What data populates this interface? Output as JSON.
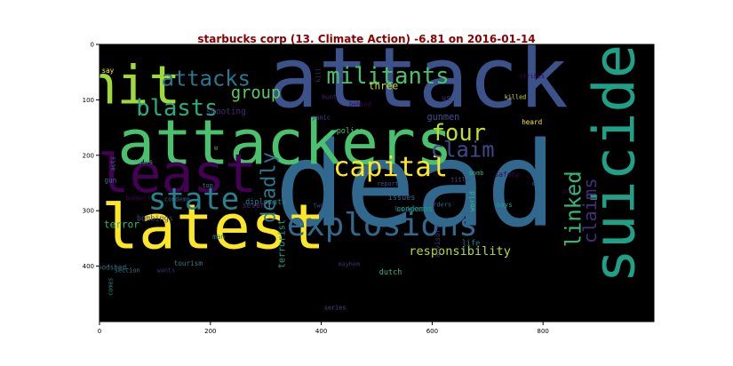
{
  "chart_data": {
    "type": "wordcloud",
    "title": "starbucks corp (13. Climate Action) -6.81 on 2016-01-14",
    "xlim": [
      0,
      1000
    ],
    "ylim": [
      500,
      0
    ],
    "x_ticks": [
      0,
      200,
      400,
      600,
      800
    ],
    "y_ticks": [
      0,
      100,
      200,
      300,
      400
    ],
    "background": "#000000",
    "title_color": "#8b0000",
    "words": [
      {
        "text": "attack",
        "x": 575,
        "y": 62,
        "size": 110,
        "color": "#3b528b",
        "rotate": 0
      },
      {
        "text": "dead",
        "x": 570,
        "y": 255,
        "size": 155,
        "color": "#31688e",
        "rotate": 0
      },
      {
        "text": "attackers",
        "x": 335,
        "y": 178,
        "size": 82,
        "color": "#4ac16d",
        "rotate": 0
      },
      {
        "text": "latest",
        "x": 205,
        "y": 330,
        "size": 82,
        "color": "#fde725",
        "rotate": 0
      },
      {
        "text": "hit",
        "x": 60,
        "y": 75,
        "size": 70,
        "color": "#a0da39",
        "rotate": 0
      },
      {
        "text": "suicide",
        "x": 930,
        "y": 215,
        "size": 75,
        "color": "#1fa187",
        "rotate": -90
      },
      {
        "text": "least",
        "x": 140,
        "y": 235,
        "size": 70,
        "color": "#440154",
        "rotate": 0
      },
      {
        "text": "explosions",
        "x": 510,
        "y": 326,
        "size": 42,
        "color": "#31688e",
        "rotate": 0
      },
      {
        "text": "state",
        "x": 170,
        "y": 280,
        "size": 40,
        "color": "#26828e",
        "rotate": 0
      },
      {
        "text": "capital",
        "x": 525,
        "y": 222,
        "size": 36,
        "color": "#fde725",
        "rotate": 0
      },
      {
        "text": "militants",
        "x": 520,
        "y": 58,
        "size": 30,
        "color": "#4ac16d",
        "rotate": 0
      },
      {
        "text": "attacks",
        "x": 192,
        "y": 62,
        "size": 28,
        "color": "#2a788e",
        "rotate": 0
      },
      {
        "text": "blasts",
        "x": 140,
        "y": 115,
        "size": 30,
        "color": "#27ad81",
        "rotate": 0
      },
      {
        "text": "four",
        "x": 648,
        "y": 160,
        "size": 30,
        "color": "#bddf26",
        "rotate": 0
      },
      {
        "text": "claim",
        "x": 655,
        "y": 190,
        "size": 28,
        "color": "#3e4a89",
        "rotate": 0
      },
      {
        "text": "group",
        "x": 282,
        "y": 88,
        "size": 22,
        "color": "#5ec962",
        "rotate": 0
      },
      {
        "text": "deadly",
        "x": 305,
        "y": 258,
        "size": 26,
        "color": "#2a788e",
        "rotate": -90
      },
      {
        "text": "linked",
        "x": 855,
        "y": 297,
        "size": 28,
        "color": "#35b779",
        "rotate": -90
      },
      {
        "text": "claims",
        "x": 885,
        "y": 300,
        "size": 24,
        "color": "#472d7b",
        "rotate": -90
      },
      {
        "text": "responsibility",
        "x": 650,
        "y": 373,
        "size": 16,
        "color": "#b5de2b",
        "rotate": 0
      },
      {
        "text": "three",
        "x": 512,
        "y": 75,
        "size": 13,
        "color": "#d2e21b",
        "rotate": 0
      },
      {
        "text": "terrorist",
        "x": 330,
        "y": 360,
        "size": 12,
        "color": "#1fa187",
        "rotate": -90
      },
      {
        "text": "gunmen",
        "x": 620,
        "y": 132,
        "size": 12,
        "color": "#3b528b",
        "rotate": 0
      },
      {
        "text": "police",
        "x": 452,
        "y": 157,
        "size": 10,
        "color": "#4ac16d",
        "rotate": 0
      },
      {
        "text": "shooting",
        "x": 228,
        "y": 122,
        "size": 11,
        "color": "#482878",
        "rotate": 0
      },
      {
        "text": "terror",
        "x": 40,
        "y": 325,
        "size": 13,
        "color": "#35b779",
        "rotate": 0
      },
      {
        "text": "bombings",
        "x": 100,
        "y": 315,
        "size": 10,
        "color": "#3e4a89",
        "rotate": 0
      },
      {
        "text": "diplomats",
        "x": 300,
        "y": 285,
        "size": 10,
        "color": "#26828e",
        "rotate": 0
      },
      {
        "text": "seven",
        "x": 278,
        "y": 292,
        "size": 10,
        "color": "#482878",
        "rotate": 0
      },
      {
        "text": "condemns",
        "x": 568,
        "y": 298,
        "size": 10,
        "color": "#1fa187",
        "rotate": 0
      },
      {
        "text": "issues",
        "x": 545,
        "y": 277,
        "size": 10,
        "color": "#31688e",
        "rotate": 0
      },
      {
        "text": "bloodshed",
        "x": 15,
        "y": 402,
        "size": 9,
        "color": "#2a788e",
        "rotate": 0
      },
      {
        "text": "tourism",
        "x": 160,
        "y": 395,
        "size": 9,
        "color": "#26828e",
        "rotate": 0
      },
      {
        "text": "man",
        "x": 215,
        "y": 347,
        "size": 9,
        "color": "#26828e",
        "rotate": 0
      },
      {
        "text": "dutch",
        "x": 525,
        "y": 412,
        "size": 10,
        "color": "#35b779",
        "rotate": 0
      },
      {
        "text": "life",
        "x": 670,
        "y": 360,
        "size": 10,
        "color": "#26828e",
        "rotate": 0
      },
      {
        "text": "advisory",
        "x": 610,
        "y": 355,
        "size": 9,
        "color": "#472d7b",
        "rotate": -90
      },
      {
        "text": "world",
        "x": 672,
        "y": 283,
        "size": 9,
        "color": "#35b779",
        "rotate": -90
      },
      {
        "text": "says",
        "x": 730,
        "y": 289,
        "size": 9,
        "color": "#1fa187",
        "rotate": 0
      },
      {
        "text": "heard",
        "x": 780,
        "y": 140,
        "size": 9,
        "color": "#fde725",
        "rotate": 0
      },
      {
        "text": "safety",
        "x": 735,
        "y": 235,
        "size": 9,
        "color": "#440154",
        "rotate": 0
      },
      {
        "text": "die",
        "x": 790,
        "y": 252,
        "size": 8,
        "color": "#31688e",
        "rotate": 0
      },
      {
        "text": "bomb",
        "x": 680,
        "y": 232,
        "size": 8,
        "color": "#27ad81",
        "rotate": 0
      },
      {
        "text": "title",
        "x": 650,
        "y": 244,
        "size": 8,
        "color": "#3b528b",
        "rotate": 0
      },
      {
        "text": "report",
        "x": 520,
        "y": 252,
        "size": 8,
        "color": "#3b528b",
        "rotate": 0
      },
      {
        "text": "orders",
        "x": 615,
        "y": 289,
        "size": 8,
        "color": "#31688e",
        "rotate": 0
      },
      {
        "text": "leaders",
        "x": 555,
        "y": 297,
        "size": 8,
        "color": "#2a788e",
        "rotate": 0
      },
      {
        "text": "two",
        "x": 395,
        "y": 291,
        "size": 8,
        "color": "#3e4a89",
        "rotate": 0
      },
      {
        "text": "condemn",
        "x": 140,
        "y": 280,
        "size": 8,
        "color": "#31688e",
        "rotate": 0
      },
      {
        "text": "bombers",
        "x": 70,
        "y": 278,
        "size": 8,
        "color": "#440154",
        "rotate": 0
      },
      {
        "text": "top",
        "x": 195,
        "y": 255,
        "size": 8,
        "color": "#26828e",
        "rotate": 0
      },
      {
        "text": "gun",
        "x": 20,
        "y": 245,
        "size": 9,
        "color": "#2a788e",
        "rotate": 0
      },
      {
        "text": "acts",
        "x": 25,
        "y": 215,
        "size": 8,
        "color": "#31688e",
        "rotate": -90
      },
      {
        "text": "hours",
        "x": 80,
        "y": 212,
        "size": 8,
        "color": "#35b779",
        "rotate": 0
      },
      {
        "text": "u",
        "x": 210,
        "y": 187,
        "size": 8,
        "color": "#b5de2b",
        "rotate": 0
      },
      {
        "text": "panic",
        "x": 400,
        "y": 132,
        "size": 8,
        "color": "#3e4a89",
        "rotate": 0
      },
      {
        "text": "us",
        "x": 625,
        "y": 98,
        "size": 10,
        "color": "#482878",
        "rotate": 0
      },
      {
        "text": "behind",
        "x": 470,
        "y": 108,
        "size": 8,
        "color": "#440154",
        "rotate": 0
      },
      {
        "text": "hunt",
        "x": 415,
        "y": 95,
        "size": 8,
        "color": "#482878",
        "rotate": 0
      },
      {
        "text": "kill",
        "x": 395,
        "y": 55,
        "size": 8,
        "color": "#482878",
        "rotate": -90
      },
      {
        "text": "say",
        "x": 15,
        "y": 47,
        "size": 9,
        "color": "#fde725",
        "rotate": 0
      },
      {
        "text": "killed",
        "x": 750,
        "y": 95,
        "size": 8,
        "color": "#d2e21b",
        "rotate": 0
      },
      {
        "text": "strikes",
        "x": 780,
        "y": 58,
        "size": 8,
        "color": "#440154",
        "rotate": 0
      },
      {
        "text": "pot",
        "x": 845,
        "y": 265,
        "size": 8,
        "color": "#440154",
        "rotate": 0
      },
      {
        "text": "wants",
        "x": 120,
        "y": 408,
        "size": 8,
        "color": "#472d7b",
        "rotate": 0
      },
      {
        "text": "section",
        "x": 50,
        "y": 408,
        "size": 8,
        "color": "#2a788e",
        "rotate": 0
      },
      {
        "text": "comes",
        "x": 20,
        "y": 437,
        "size": 8,
        "color": "#26828e",
        "rotate": -90
      },
      {
        "text": "mayhem",
        "x": 450,
        "y": 397,
        "size": 8,
        "color": "#472d7b",
        "rotate": 0
      },
      {
        "text": "series",
        "x": 425,
        "y": 475,
        "size": 8,
        "color": "#3b528b",
        "rotate": 0
      }
    ]
  }
}
